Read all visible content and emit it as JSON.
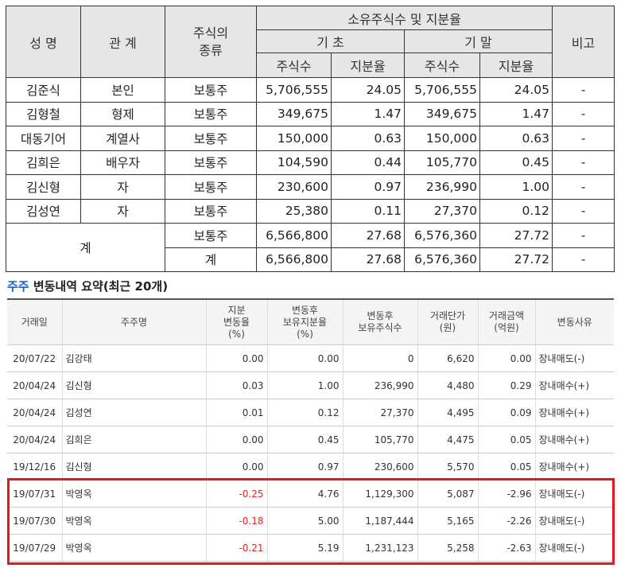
{
  "top_table": {
    "headers": {
      "name": "성 명",
      "relation": "관 계",
      "stock_type": "주식의 종류",
      "holdings_group": "소유주식수 및 지분율",
      "begin": "기 초",
      "end": "기 말",
      "remark": "비고",
      "shares": "주식수",
      "ratio": "지분율"
    },
    "rows": [
      {
        "name": "김준식",
        "relation": "본인",
        "type": "보통주",
        "begin_shares": "5,706,555",
        "begin_ratio": "24.05",
        "end_shares": "5,706,555",
        "end_ratio": "24.05",
        "remark": "-"
      },
      {
        "name": "김형철",
        "relation": "형제",
        "type": "보통주",
        "begin_shares": "349,675",
        "begin_ratio": "1.47",
        "end_shares": "349,675",
        "end_ratio": "1.47",
        "remark": "-"
      },
      {
        "name": "대동기어",
        "relation": "계열사",
        "type": "보통주",
        "begin_shares": "150,000",
        "begin_ratio": "0.63",
        "end_shares": "150,000",
        "end_ratio": "0.63",
        "remark": "-"
      },
      {
        "name": "김희은",
        "relation": "배우자",
        "type": "보통주",
        "begin_shares": "104,590",
        "begin_ratio": "0.44",
        "end_shares": "105,770",
        "end_ratio": "0.45",
        "remark": "-"
      },
      {
        "name": "김신형",
        "relation": "자",
        "type": "보통주",
        "begin_shares": "230,600",
        "begin_ratio": "0.97",
        "end_shares": "236,990",
        "end_ratio": "1.00",
        "remark": "-"
      },
      {
        "name": "김성연",
        "relation": "자",
        "type": "보통주",
        "begin_shares": "25,380",
        "begin_ratio": "0.11",
        "end_shares": "27,370",
        "end_ratio": "0.12",
        "remark": "-"
      }
    ],
    "total_label": "계",
    "totals": [
      {
        "type": "보통주",
        "begin_shares": "6,566,800",
        "begin_ratio": "27.68",
        "end_shares": "6,576,360",
        "end_ratio": "27.72",
        "remark": "-"
      },
      {
        "type": "계",
        "begin_shares": "6,566,800",
        "begin_ratio": "27.68",
        "end_shares": "6,576,360",
        "end_ratio": "27.72",
        "remark": "-"
      }
    ]
  },
  "section": {
    "title_accent": "주주",
    "title_rest": " 변동내역 요약(최근 20개)"
  },
  "changes_table": {
    "headers": {
      "date": "거래일",
      "holder": "주주명",
      "ratio_change": "지분\n변동율\n(%)",
      "ratio_after": "변동후\n보유지분율\n(%)",
      "shares_after": "변동후\n보유주식수",
      "price": "거래단가\n(원)",
      "amount": "거래금액\n(억원)",
      "reason": "변동사유"
    },
    "rows": [
      {
        "date": "20/07/22",
        "holder": "김강태",
        "ratio_change": "0.00",
        "ratio_after": "0.00",
        "shares_after": "0",
        "price": "6,620",
        "amount": "0.00",
        "reason": "장내매도(-)",
        "neg": false
      },
      {
        "date": "20/04/24",
        "holder": "김신형",
        "ratio_change": "0.03",
        "ratio_after": "1.00",
        "shares_after": "236,990",
        "price": "4,480",
        "amount": "0.29",
        "reason": "장내매수(+)",
        "neg": false
      },
      {
        "date": "20/04/24",
        "holder": "김성연",
        "ratio_change": "0.01",
        "ratio_after": "0.12",
        "shares_after": "27,370",
        "price": "4,495",
        "amount": "0.09",
        "reason": "장내매수(+)",
        "neg": false
      },
      {
        "date": "20/04/24",
        "holder": "김희은",
        "ratio_change": "0.00",
        "ratio_after": "0.45",
        "shares_after": "105,770",
        "price": "4,475",
        "amount": "0.05",
        "reason": "장내매수(+)",
        "neg": false
      },
      {
        "date": "19/12/16",
        "holder": "김신형",
        "ratio_change": "0.00",
        "ratio_after": "0.97",
        "shares_after": "230,600",
        "price": "5,570",
        "amount": "0.05",
        "reason": "장내매수(+)",
        "neg": false
      },
      {
        "date": "19/07/31",
        "holder": "박영옥",
        "ratio_change": "-0.25",
        "ratio_after": "4.76",
        "shares_after": "1,129,300",
        "price": "5,087",
        "amount": "-2.96",
        "reason": "장내매도(-)",
        "neg": true
      },
      {
        "date": "19/07/30",
        "holder": "박영옥",
        "ratio_change": "-0.18",
        "ratio_after": "5.00",
        "shares_after": "1,187,444",
        "price": "5,165",
        "amount": "-2.26",
        "reason": "장내매도(-)",
        "neg": true
      },
      {
        "date": "19/07/29",
        "holder": "박영옥",
        "ratio_change": "-0.21",
        "ratio_after": "5.19",
        "shares_after": "1,231,123",
        "price": "5,258",
        "amount": "-2.63",
        "reason": "장내매도(-)",
        "neg": true
      }
    ]
  },
  "colors": {
    "accent": "#1a5cc8",
    "negative": "#e02020",
    "highlight_border": "#e8161e"
  }
}
